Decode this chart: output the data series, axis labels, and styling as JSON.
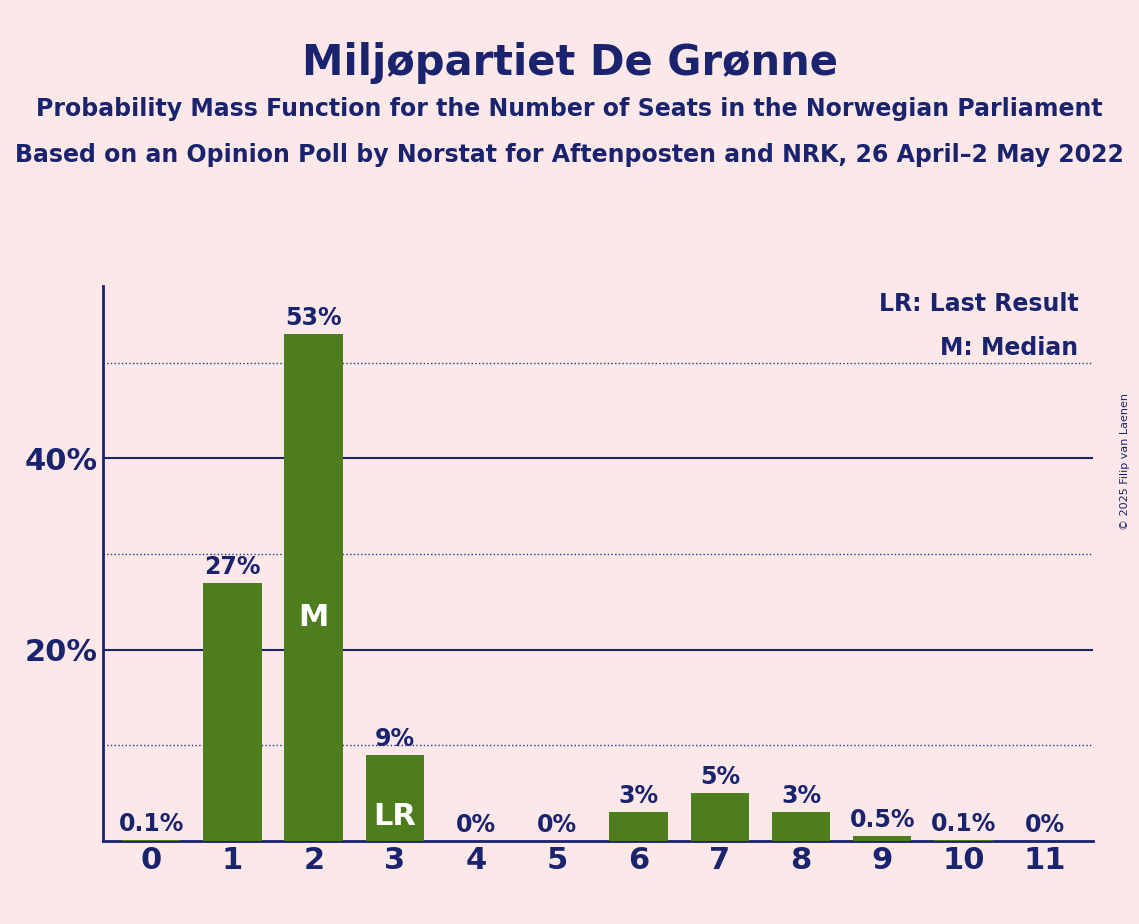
{
  "title": "Miljøpartiet De Grønne",
  "subtitle1": "Probability Mass Function for the Number of Seats in the Norwegian Parliament",
  "subtitle2": "Based on an Opinion Poll by Norstat for Aftenposten and NRK, 26 April–2 May 2022",
  "copyright": "© 2025 Filip van Laenen",
  "categories": [
    0,
    1,
    2,
    3,
    4,
    5,
    6,
    7,
    8,
    9,
    10,
    11
  ],
  "values": [
    0.1,
    27,
    53,
    9,
    0,
    0,
    3,
    5,
    3,
    0.5,
    0.1,
    0
  ],
  "value_labels": [
    "0.1%",
    "27%",
    "53%",
    "9%",
    "0%",
    "0%",
    "3%",
    "5%",
    "3%",
    "0.5%",
    "0.1%",
    "0%"
  ],
  "bar_color": "#4e7d1e",
  "background_color": "#fce8e8",
  "title_color": "#1a236e",
  "axis_color": "#1a236e",
  "grid_solid_color": "#1a236e",
  "grid_dotted_color": "#1a3a8e",
  "label_color_outside": "#1a236e",
  "label_color_inside": "#ffffff",
  "lr_bar": 3,
  "median_bar": 2,
  "legend_lr": "LR: Last Result",
  "legend_m": "M: Median",
  "yticks_solid": [
    20,
    40
  ],
  "yticks_dotted": [
    10,
    30,
    50
  ],
  "ylim": [
    0,
    58
  ],
  "title_fontsize": 30,
  "subtitle_fontsize": 17,
  "label_fontsize": 17,
  "tick_fontsize": 22,
  "ytick_fontsize": 22,
  "legend_fontsize": 17,
  "bar_label_inside_fontsize": 22,
  "copyright_fontsize": 8
}
